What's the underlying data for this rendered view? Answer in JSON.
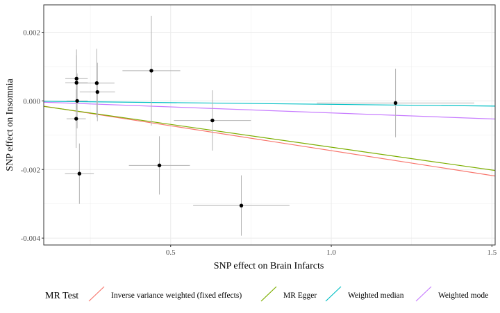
{
  "chart_data": {
    "type": "scatter",
    "xlabel": "SNP effect on Brain Infarcts",
    "ylabel": "SNP effect on Insomnia",
    "xlim": [
      0.105,
      1.51
    ],
    "ylim": [
      -0.0042,
      0.0028
    ],
    "x_ticks": [
      0.5,
      1.0,
      1.5
    ],
    "x_tick_labels": [
      "0.5",
      "1.0",
      "1.5"
    ],
    "y_ticks": [
      -0.004,
      -0.002,
      0.0,
      0.002
    ],
    "y_tick_labels": [
      "-0.004",
      "-0.002",
      "0.000",
      "0.002"
    ],
    "grid": true,
    "points": [
      {
        "x": 0.207,
        "y": 0.00065,
        "xerr": 0.035,
        "yerr": 0.00085
      },
      {
        "x": 0.207,
        "y": 0.00053,
        "xerr": 0.035,
        "yerr": 0.0008
      },
      {
        "x": 0.209,
        "y": 0.0,
        "xerr": 0.033,
        "yerr": 0.0008
      },
      {
        "x": 0.206,
        "y": -0.00052,
        "xerr": 0.03,
        "yerr": 0.00085
      },
      {
        "x": 0.216,
        "y": -0.00212,
        "xerr": 0.045,
        "yerr": 0.00088
      },
      {
        "x": 0.27,
        "y": 0.00052,
        "xerr": 0.055,
        "yerr": 0.001
      },
      {
        "x": 0.272,
        "y": 0.00026,
        "xerr": 0.055,
        "yerr": 0.00085
      },
      {
        "x": 0.44,
        "y": 0.00088,
        "xerr": 0.09,
        "yerr": 0.0016
      },
      {
        "x": 0.465,
        "y": -0.00188,
        "xerr": 0.095,
        "yerr": 0.00085
      },
      {
        "x": 0.63,
        "y": -0.00057,
        "xerr": 0.12,
        "yerr": 0.00088
      },
      {
        "x": 0.72,
        "y": -0.00305,
        "xerr": 0.15,
        "yerr": 0.00088
      },
      {
        "x": 1.2,
        "y": -6e-05,
        "xerr": 0.245,
        "yerr": 0.001
      }
    ],
    "series": [
      {
        "name": "Inverse variance weighted (fixed effects)",
        "intercept": 0.0,
        "slope": -0.00145,
        "color": "#F8766D"
      },
      {
        "name": "MR Egger",
        "intercept": -2e-05,
        "slope": -0.00133,
        "color": "#7CAE00"
      },
      {
        "name": "Weighted median",
        "intercept": 0.0,
        "slope": -0.0001,
        "color": "#00BFC4"
      },
      {
        "name": "Weighted mode",
        "intercept": 0.0,
        "slope": -0.00035,
        "color": "#C77CFF"
      }
    ],
    "legend": {
      "title": "MR Test",
      "position": "bottom"
    }
  }
}
